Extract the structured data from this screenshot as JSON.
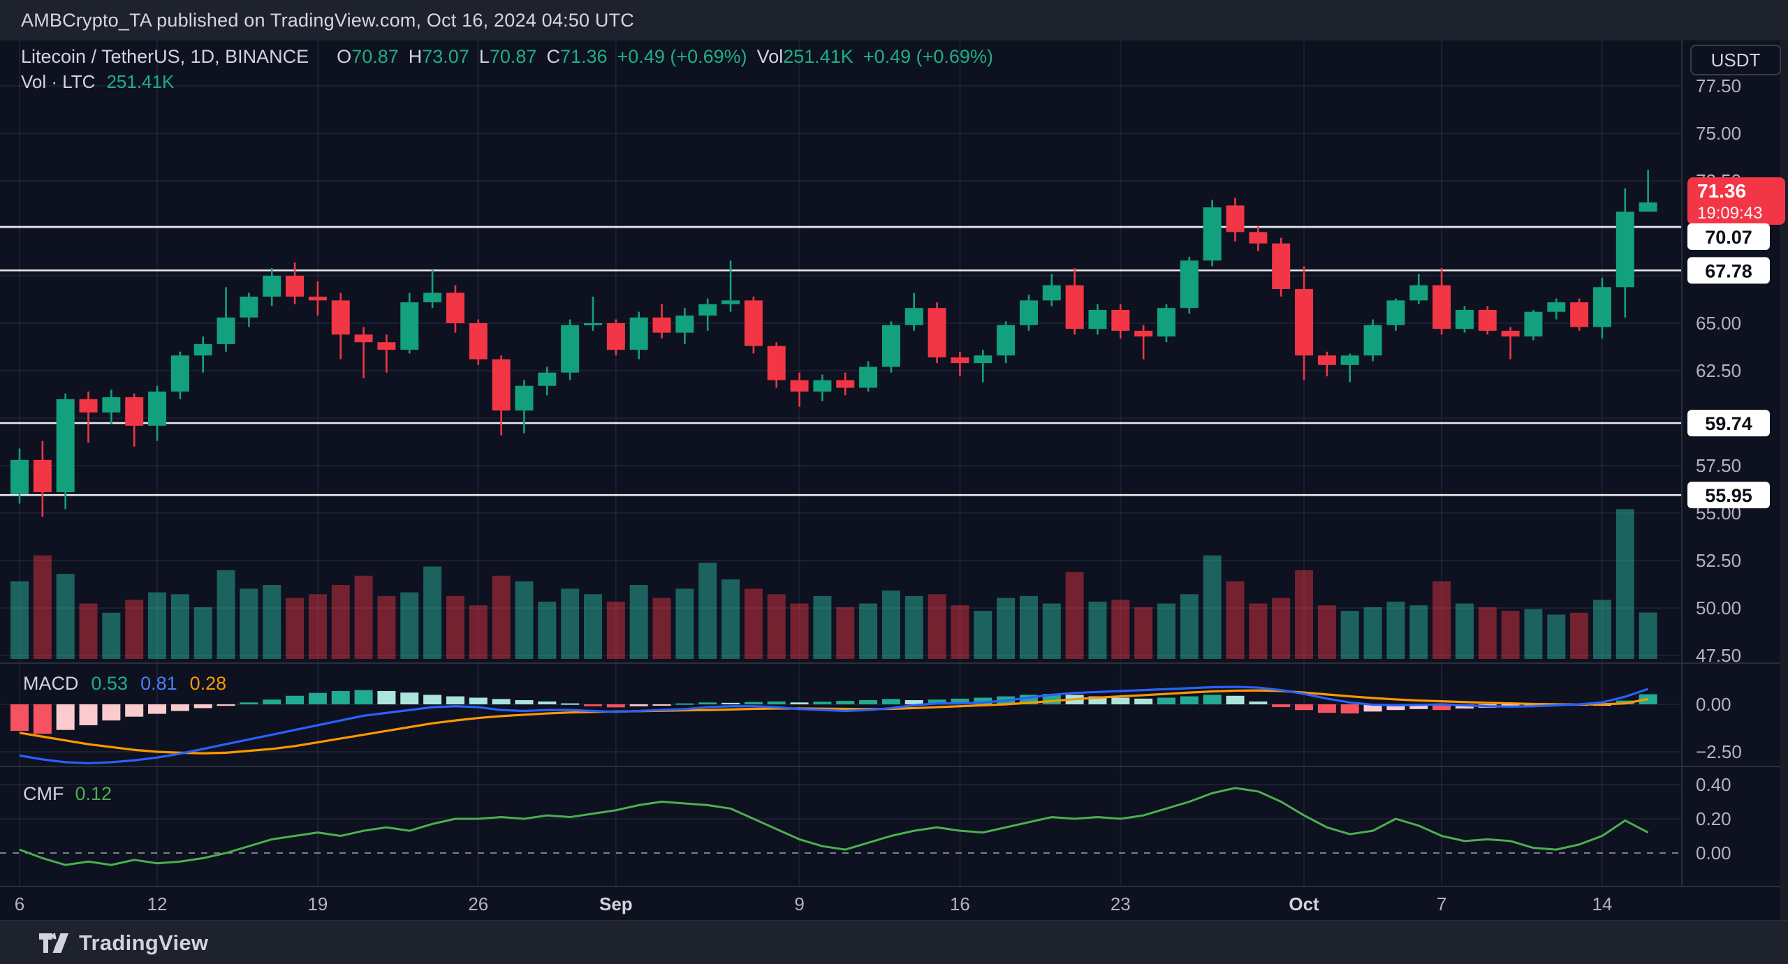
{
  "header": {
    "attribution": "AMBCrypto_TA published on TradingView.com, Oct 16, 2024 04:50 UTC"
  },
  "toolbar": {
    "currency_button": "USDT"
  },
  "legend": {
    "pair": "Litecoin / TetherUS, 1D, BINANCE",
    "o_label": "O",
    "open": "70.87",
    "h_label": "H",
    "high": "73.07",
    "l_label": "L",
    "low": "70.87",
    "c_label": "C",
    "close": "71.36",
    "change": "+0.49 (+0.69%)",
    "vol_label": "Vol",
    "vol_value": "251.41K",
    "vol_change": "+0.49 (+0.69%)"
  },
  "vol_legend": {
    "label": "Vol · LTC",
    "value": "251.41K"
  },
  "macd_legend": {
    "name": "MACD",
    "hist_value": "0.53",
    "macd_value": "0.81",
    "signal_value": "0.28"
  },
  "cmf_legend": {
    "name": "CMF",
    "value": "0.12"
  },
  "footer": {
    "brand": "TradingView"
  },
  "colors": {
    "up": "#12a17c",
    "down": "#f23645",
    "vol_up": "rgba(42,166,145,0.55)",
    "vol_down": "rgba(242,54,69,0.45)",
    "macd_pos": "#22ab94",
    "macd_pos_light": "#ace5dc",
    "macd_neg": "#f7525f",
    "macd_neg_light": "#fccbcd",
    "macd_line": "#2962ff",
    "signal_line": "#ff9800",
    "cmf_line": "#4caf50",
    "axis_text": "#b2b5be",
    "level_line": "#ffffff",
    "badge_bg": "#ffffff",
    "badge_text": "#0b0e15",
    "current_badge_bg": "#f23645",
    "current_badge_text": "#ffffff",
    "grid": "rgba(130,140,170,0.12)",
    "separator": "#2a2e39"
  },
  "price_axis": {
    "ticks": [
      {
        "label": "77.50",
        "price": 77.5
      },
      {
        "label": "75.00",
        "price": 75.0
      },
      {
        "label": "72.50",
        "price": 72.5
      },
      {
        "label": "65.00",
        "price": 65.0
      },
      {
        "label": "62.50",
        "price": 62.5
      },
      {
        "label": "57.50",
        "price": 57.5
      },
      {
        "label": "55.00",
        "price": 55.0
      },
      {
        "label": "52.50",
        "price": 52.5
      },
      {
        "label": "50.00",
        "price": 50.0
      },
      {
        "label": "47.50",
        "price": 47.5
      }
    ],
    "level_badges": [
      {
        "label": "70.07",
        "price": 70.07
      },
      {
        "label": "67.78",
        "price": 67.78
      },
      {
        "label": "59.74",
        "price": 59.74
      },
      {
        "label": "55.95",
        "price": 55.95
      }
    ],
    "current": {
      "price_label": "71.36",
      "price": 71.36,
      "countdown": "19:09:43"
    }
  },
  "macd_axis": [
    {
      "label": "0.00",
      "value": 0
    },
    {
      "label": "−2.50",
      "value": -2.5
    }
  ],
  "cmf_axis": [
    {
      "label": "0.40",
      "value": 0.4
    },
    {
      "label": "0.20",
      "value": 0.2
    },
    {
      "label": "0.00",
      "value": 0.0
    }
  ],
  "time_axis": [
    {
      "label": "6",
      "index": 0,
      "bold": false
    },
    {
      "label": "12",
      "index": 6,
      "bold": false
    },
    {
      "label": "19",
      "index": 13,
      "bold": false
    },
    {
      "label": "26",
      "index": 20,
      "bold": false
    },
    {
      "label": "Sep",
      "index": 26,
      "bold": true
    },
    {
      "label": "9",
      "index": 34,
      "bold": false
    },
    {
      "label": "16",
      "index": 41,
      "bold": false
    },
    {
      "label": "23",
      "index": 48,
      "bold": false
    },
    {
      "label": "Oct",
      "index": 56,
      "bold": true
    },
    {
      "label": "7",
      "index": 62,
      "bold": false
    },
    {
      "label": "14",
      "index": 69,
      "bold": false
    }
  ],
  "chart_data": {
    "type": "candlestick",
    "title": "Litecoin / TetherUS, 1D, BINANCE",
    "panes": [
      "price+volume",
      "MACD(12,26,9)",
      "CMF"
    ],
    "ylim_price": [
      46.8,
      78.6
    ],
    "levels": [
      70.07,
      67.78,
      59.74,
      55.95
    ],
    "legend_position": "top-left",
    "grid": true,
    "dates": [
      "Aug 6",
      "Aug 7",
      "Aug 8",
      "Aug 9",
      "Aug 10",
      "Aug 11",
      "Aug 12",
      "Aug 13",
      "Aug 14",
      "Aug 15",
      "Aug 16",
      "Aug 17",
      "Aug 18",
      "Aug 19",
      "Aug 20",
      "Aug 21",
      "Aug 22",
      "Aug 23",
      "Aug 24",
      "Aug 25",
      "Aug 26",
      "Aug 27",
      "Aug 28",
      "Aug 29",
      "Aug 30",
      "Aug 31",
      "Sep 1",
      "Sep 2",
      "Sep 3",
      "Sep 4",
      "Sep 5",
      "Sep 6",
      "Sep 7",
      "Sep 8",
      "Sep 9",
      "Sep 10",
      "Sep 11",
      "Sep 12",
      "Sep 13",
      "Sep 14",
      "Sep 15",
      "Sep 16",
      "Sep 17",
      "Sep 18",
      "Sep 19",
      "Sep 20",
      "Sep 21",
      "Sep 22",
      "Sep 23",
      "Sep 24",
      "Sep 25",
      "Sep 26",
      "Sep 27",
      "Sep 28",
      "Sep 29",
      "Sep 30",
      "Oct 1",
      "Oct 2",
      "Oct 3",
      "Oct 4",
      "Oct 5",
      "Oct 6",
      "Oct 7",
      "Oct 8",
      "Oct 9",
      "Oct 10",
      "Oct 11",
      "Oct 12",
      "Oct 13",
      "Oct 14",
      "Oct 15",
      "Oct 16"
    ],
    "ohlc": [
      [
        56.0,
        58.4,
        55.5,
        57.8
      ],
      [
        57.8,
        58.8,
        54.8,
        56.1
      ],
      [
        56.1,
        61.3,
        55.2,
        61.0
      ],
      [
        61.0,
        61.4,
        58.7,
        60.3
      ],
      [
        60.3,
        61.5,
        59.7,
        61.1
      ],
      [
        61.1,
        61.3,
        58.5,
        59.6
      ],
      [
        59.6,
        61.7,
        58.8,
        61.4
      ],
      [
        61.4,
        63.5,
        61.0,
        63.3
      ],
      [
        63.3,
        64.3,
        62.4,
        63.9
      ],
      [
        63.9,
        66.9,
        63.5,
        65.3
      ],
      [
        65.3,
        66.6,
        64.8,
        66.4
      ],
      [
        66.4,
        67.9,
        65.9,
        67.5
      ],
      [
        67.5,
        68.2,
        66.0,
        66.4
      ],
      [
        66.4,
        67.2,
        65.4,
        66.2
      ],
      [
        66.2,
        66.6,
        63.1,
        64.4
      ],
      [
        64.4,
        64.8,
        62.1,
        64.0
      ],
      [
        64.0,
        64.4,
        62.4,
        63.6
      ],
      [
        63.6,
        66.6,
        63.4,
        66.1
      ],
      [
        66.1,
        67.8,
        65.8,
        66.6
      ],
      [
        66.6,
        67.0,
        64.5,
        65.0
      ],
      [
        65.0,
        65.2,
        62.8,
        63.1
      ],
      [
        63.1,
        63.3,
        59.1,
        60.4
      ],
      [
        60.4,
        62.0,
        59.2,
        61.7
      ],
      [
        61.7,
        62.7,
        61.2,
        62.4
      ],
      [
        62.4,
        65.2,
        62.0,
        64.9
      ],
      [
        64.9,
        66.4,
        64.6,
        65.0
      ],
      [
        65.0,
        65.2,
        63.3,
        63.6
      ],
      [
        63.6,
        65.6,
        63.1,
        65.3
      ],
      [
        65.3,
        66.0,
        64.2,
        64.5
      ],
      [
        64.5,
        65.8,
        63.9,
        65.4
      ],
      [
        65.4,
        66.3,
        64.6,
        66.0
      ],
      [
        66.0,
        68.3,
        65.6,
        66.2
      ],
      [
        66.2,
        66.4,
        63.4,
        63.8
      ],
      [
        63.8,
        64.0,
        61.6,
        62.0
      ],
      [
        62.0,
        62.4,
        60.6,
        61.4
      ],
      [
        61.4,
        62.3,
        60.9,
        62.0
      ],
      [
        62.0,
        62.4,
        61.2,
        61.6
      ],
      [
        61.6,
        63.0,
        61.4,
        62.7
      ],
      [
        62.7,
        65.1,
        62.4,
        64.9
      ],
      [
        64.9,
        66.6,
        64.6,
        65.8
      ],
      [
        65.8,
        66.1,
        62.9,
        63.2
      ],
      [
        63.2,
        63.5,
        62.2,
        62.9
      ],
      [
        62.9,
        63.6,
        61.9,
        63.3
      ],
      [
        63.3,
        65.1,
        62.9,
        64.9
      ],
      [
        64.9,
        66.5,
        64.6,
        66.2
      ],
      [
        66.2,
        67.6,
        65.9,
        67.0
      ],
      [
        67.0,
        67.9,
        64.4,
        64.7
      ],
      [
        64.7,
        66.0,
        64.4,
        65.7
      ],
      [
        65.7,
        66.0,
        64.2,
        64.6
      ],
      [
        64.6,
        64.9,
        63.1,
        64.3
      ],
      [
        64.3,
        66.0,
        64.0,
        65.8
      ],
      [
        65.8,
        68.5,
        65.5,
        68.3
      ],
      [
        68.3,
        71.5,
        68.0,
        71.1
      ],
      [
        71.2,
        71.6,
        69.3,
        69.8
      ],
      [
        69.8,
        70.1,
        68.8,
        69.2
      ],
      [
        69.2,
        69.5,
        66.4,
        66.8
      ],
      [
        66.8,
        68.0,
        62.0,
        63.3
      ],
      [
        63.3,
        63.5,
        62.2,
        62.8
      ],
      [
        62.8,
        63.4,
        61.9,
        63.3
      ],
      [
        63.3,
        65.2,
        63.0,
        64.9
      ],
      [
        64.9,
        66.3,
        64.6,
        66.2
      ],
      [
        66.2,
        67.6,
        66.0,
        67.0
      ],
      [
        67.0,
        67.9,
        64.4,
        64.7
      ],
      [
        64.7,
        65.9,
        64.5,
        65.7
      ],
      [
        65.7,
        65.9,
        64.4,
        64.6
      ],
      [
        64.6,
        64.8,
        63.1,
        64.3
      ],
      [
        64.3,
        65.7,
        64.1,
        65.6
      ],
      [
        65.6,
        66.3,
        65.2,
        66.1
      ],
      [
        66.1,
        66.3,
        64.6,
        64.8
      ],
      [
        64.8,
        67.4,
        64.2,
        66.9
      ],
      [
        66.9,
        72.1,
        65.3,
        70.87
      ],
      [
        70.87,
        73.07,
        70.87,
        71.36
      ]
    ],
    "volume_k": [
      420,
      560,
      460,
      300,
      250,
      320,
      360,
      350,
      280,
      480,
      380,
      400,
      330,
      350,
      400,
      450,
      340,
      360,
      500,
      340,
      290,
      450,
      420,
      310,
      380,
      350,
      310,
      400,
      330,
      380,
      520,
      430,
      380,
      350,
      300,
      340,
      280,
      300,
      370,
      340,
      350,
      290,
      260,
      330,
      340,
      300,
      470,
      310,
      320,
      280,
      300,
      350,
      560,
      420,
      300,
      330,
      480,
      290,
      260,
      280,
      310,
      290,
      420,
      300,
      280,
      260,
      270,
      240,
      250,
      320,
      810,
      251
    ],
    "macd": {
      "histogram": [
        -1.4,
        -1.55,
        -1.35,
        -1.1,
        -0.85,
        -0.65,
        -0.5,
        -0.35,
        -0.2,
        -0.08,
        0.1,
        0.25,
        0.45,
        0.6,
        0.7,
        0.75,
        0.7,
        0.62,
        0.5,
        0.42,
        0.35,
        0.28,
        0.22,
        0.15,
        0.05,
        -0.1,
        -0.16,
        -0.1,
        -0.04,
        0.05,
        0.1,
        0.08,
        0.12,
        0.15,
        0.1,
        0.14,
        0.18,
        0.22,
        0.28,
        0.22,
        0.25,
        0.3,
        0.35,
        0.42,
        0.5,
        0.55,
        0.5,
        0.42,
        0.35,
        0.3,
        0.35,
        0.42,
        0.5,
        0.45,
        0.15,
        -0.15,
        -0.3,
        -0.45,
        -0.48,
        -0.38,
        -0.3,
        -0.25,
        -0.3,
        -0.22,
        -0.18,
        -0.15,
        -0.12,
        -0.08,
        -0.05,
        -0.03,
        0.2,
        0.53
      ],
      "macd_line": [
        -2.7,
        -2.9,
        -3.05,
        -3.1,
        -3.05,
        -2.95,
        -2.8,
        -2.6,
        -2.35,
        -2.1,
        -1.85,
        -1.6,
        -1.35,
        -1.1,
        -0.85,
        -0.6,
        -0.45,
        -0.3,
        -0.15,
        -0.1,
        -0.15,
        -0.3,
        -0.35,
        -0.3,
        -0.3,
        -0.35,
        -0.4,
        -0.35,
        -0.3,
        -0.25,
        -0.15,
        -0.1,
        -0.1,
        -0.15,
        -0.25,
        -0.3,
        -0.35,
        -0.3,
        -0.2,
        -0.05,
        0.05,
        0.05,
        0.1,
        0.2,
        0.35,
        0.5,
        0.6,
        0.65,
        0.7,
        0.75,
        0.8,
        0.85,
        0.9,
        0.92,
        0.88,
        0.75,
        0.55,
        0.3,
        0.1,
        -0.02,
        -0.05,
        -0.03,
        0.0,
        -0.05,
        -0.1,
        -0.12,
        -0.1,
        -0.05,
        0.0,
        0.1,
        0.4,
        0.81
      ],
      "signal_line": [
        -1.5,
        -1.7,
        -1.9,
        -2.1,
        -2.25,
        -2.4,
        -2.5,
        -2.55,
        -2.58,
        -2.55,
        -2.45,
        -2.35,
        -2.2,
        -2.0,
        -1.8,
        -1.6,
        -1.4,
        -1.2,
        -1.0,
        -0.85,
        -0.72,
        -0.62,
        -0.55,
        -0.48,
        -0.43,
        -0.4,
        -0.38,
        -0.36,
        -0.34,
        -0.32,
        -0.3,
        -0.27,
        -0.24,
        -0.22,
        -0.22,
        -0.23,
        -0.24,
        -0.25,
        -0.24,
        -0.2,
        -0.15,
        -0.1,
        -0.05,
        0.0,
        0.08,
        0.17,
        0.27,
        0.35,
        0.42,
        0.48,
        0.55,
        0.62,
        0.68,
        0.72,
        0.73,
        0.7,
        0.62,
        0.52,
        0.42,
        0.33,
        0.26,
        0.2,
        0.16,
        0.12,
        0.08,
        0.05,
        0.02,
        0.0,
        -0.01,
        0.0,
        0.05,
        0.28
      ]
    },
    "cmf": [
      0.02,
      -0.03,
      -0.07,
      -0.05,
      -0.07,
      -0.04,
      -0.06,
      -0.05,
      -0.03,
      0.0,
      0.04,
      0.08,
      0.1,
      0.12,
      0.1,
      0.13,
      0.15,
      0.13,
      0.17,
      0.2,
      0.2,
      0.21,
      0.2,
      0.22,
      0.21,
      0.23,
      0.25,
      0.28,
      0.3,
      0.29,
      0.28,
      0.26,
      0.2,
      0.14,
      0.08,
      0.04,
      0.02,
      0.06,
      0.1,
      0.13,
      0.15,
      0.13,
      0.12,
      0.15,
      0.18,
      0.21,
      0.2,
      0.21,
      0.2,
      0.22,
      0.26,
      0.3,
      0.35,
      0.38,
      0.36,
      0.3,
      0.22,
      0.15,
      0.11,
      0.13,
      0.2,
      0.16,
      0.1,
      0.07,
      0.08,
      0.07,
      0.03,
      0.02,
      0.05,
      0.1,
      0.19,
      0.12
    ]
  }
}
